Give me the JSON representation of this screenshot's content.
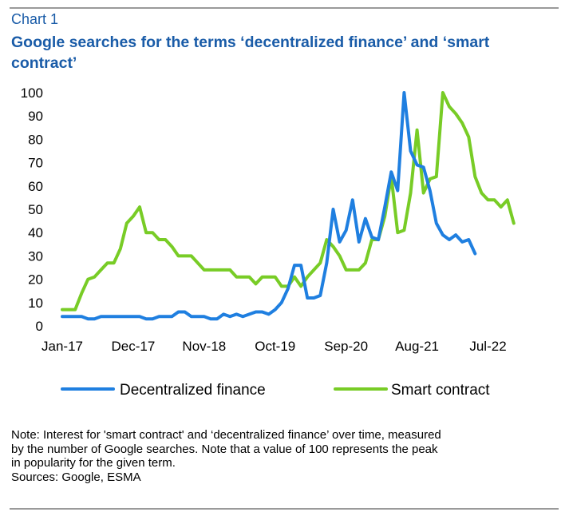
{
  "header": {
    "chart_label": "Chart   1",
    "title": "Google searches for the terms ‘decentralized finance’ and ‘smart contract’"
  },
  "footer": {
    "note_lines": [
      "Note: Interest for 'smart contract' and ‘decentralized finance’ over time, measured",
      "by the number of Google searches. Note that a value of 100 represents the peak",
      "in popularity for the given term."
    ],
    "sources": "Sources: Google, ESMA"
  },
  "chart_data": {
    "type": "line",
    "y_ticks": [
      0,
      10,
      20,
      30,
      40,
      50,
      60,
      70,
      80,
      90,
      100
    ],
    "ylim": [
      0,
      100
    ],
    "x_range": [
      0,
      72
    ],
    "x_tick_labels": [
      {
        "label": "Jan-17",
        "x": 0
      },
      {
        "label": "Dec-17",
        "x": 11
      },
      {
        "label": "Nov-18",
        "x": 22
      },
      {
        "label": "Oct-19",
        "x": 33
      },
      {
        "label": "Sep-20",
        "x": 44
      },
      {
        "label": "Aug-21",
        "x": 55
      },
      {
        "label": "Jul-22",
        "x": 66
      }
    ],
    "grid": false,
    "legend_position": "bottom",
    "series": [
      {
        "name": "Decentralized finance",
        "color": "#1f7fe0",
        "points": [
          [
            0,
            4
          ],
          [
            1,
            4
          ],
          [
            2,
            4
          ],
          [
            3,
            4
          ],
          [
            4,
            3
          ],
          [
            5,
            3
          ],
          [
            6,
            4
          ],
          [
            7,
            4
          ],
          [
            8,
            4
          ],
          [
            9,
            4
          ],
          [
            10,
            4
          ],
          [
            11,
            4
          ],
          [
            12,
            4
          ],
          [
            13,
            3
          ],
          [
            14,
            3
          ],
          [
            15,
            4
          ],
          [
            16,
            4
          ],
          [
            17,
            4
          ],
          [
            18,
            6
          ],
          [
            19,
            6
          ],
          [
            20,
            4
          ],
          [
            21,
            4
          ],
          [
            22,
            4
          ],
          [
            23,
            3
          ],
          [
            24,
            3
          ],
          [
            25,
            5
          ],
          [
            26,
            4
          ],
          [
            27,
            5
          ],
          [
            28,
            4
          ],
          [
            29,
            5
          ],
          [
            30,
            6
          ],
          [
            31,
            6
          ],
          [
            32,
            5
          ],
          [
            33,
            7
          ],
          [
            34,
            10
          ],
          [
            35,
            16
          ],
          [
            36,
            26
          ],
          [
            37,
            26
          ],
          [
            38,
            12
          ],
          [
            39,
            12
          ],
          [
            40,
            13
          ],
          [
            41,
            27
          ],
          [
            42,
            50
          ],
          [
            43,
            36
          ],
          [
            44,
            41
          ],
          [
            45,
            54
          ],
          [
            46,
            36
          ],
          [
            47,
            46
          ],
          [
            48,
            38
          ],
          [
            49,
            37
          ],
          [
            50,
            51
          ],
          [
            51,
            66
          ],
          [
            52,
            58
          ],
          [
            53,
            100
          ],
          [
            54,
            75
          ],
          [
            55,
            69
          ],
          [
            56,
            68
          ],
          [
            57,
            58
          ],
          [
            58,
            44
          ],
          [
            59,
            39
          ],
          [
            60,
            37
          ],
          [
            61,
            39
          ],
          [
            62,
            36
          ],
          [
            63,
            37
          ],
          [
            64,
            31
          ]
        ]
      },
      {
        "name": "Smart contract",
        "color": "#78cc26",
        "points": [
          [
            0,
            7
          ],
          [
            1,
            7
          ],
          [
            2,
            7
          ],
          [
            3,
            14
          ],
          [
            4,
            20
          ],
          [
            5,
            21
          ],
          [
            6,
            24
          ],
          [
            7,
            27
          ],
          [
            8,
            27
          ],
          [
            9,
            33
          ],
          [
            10,
            44
          ],
          [
            11,
            47
          ],
          [
            12,
            51
          ],
          [
            13,
            40
          ],
          [
            14,
            40
          ],
          [
            15,
            37
          ],
          [
            16,
            37
          ],
          [
            17,
            34
          ],
          [
            18,
            30
          ],
          [
            19,
            30
          ],
          [
            20,
            30
          ],
          [
            21,
            27
          ],
          [
            22,
            24
          ],
          [
            23,
            24
          ],
          [
            24,
            24
          ],
          [
            25,
            24
          ],
          [
            26,
            24
          ],
          [
            27,
            21
          ],
          [
            28,
            21
          ],
          [
            29,
            21
          ],
          [
            30,
            18
          ],
          [
            31,
            21
          ],
          [
            32,
            21
          ],
          [
            33,
            21
          ],
          [
            34,
            17
          ],
          [
            35,
            17
          ],
          [
            36,
            21
          ],
          [
            37,
            17
          ],
          [
            38,
            21
          ],
          [
            39,
            24
          ],
          [
            40,
            27
          ],
          [
            41,
            37
          ],
          [
            42,
            34
          ],
          [
            43,
            30
          ],
          [
            44,
            24
          ],
          [
            45,
            24
          ],
          [
            46,
            24
          ],
          [
            47,
            27
          ],
          [
            48,
            37
          ],
          [
            49,
            37
          ],
          [
            50,
            47
          ],
          [
            51,
            64
          ],
          [
            52,
            40
          ],
          [
            53,
            41
          ],
          [
            54,
            57
          ],
          [
            55,
            84
          ],
          [
            56,
            57
          ],
          [
            57,
            63
          ],
          [
            58,
            64
          ],
          [
            59,
            100
          ],
          [
            60,
            94
          ],
          [
            61,
            91
          ],
          [
            62,
            87
          ],
          [
            63,
            81
          ],
          [
            64,
            64
          ],
          [
            65,
            57
          ],
          [
            66,
            54
          ],
          [
            67,
            54
          ],
          [
            68,
            51
          ],
          [
            69,
            54
          ],
          [
            70,
            44
          ]
        ]
      }
    ]
  }
}
